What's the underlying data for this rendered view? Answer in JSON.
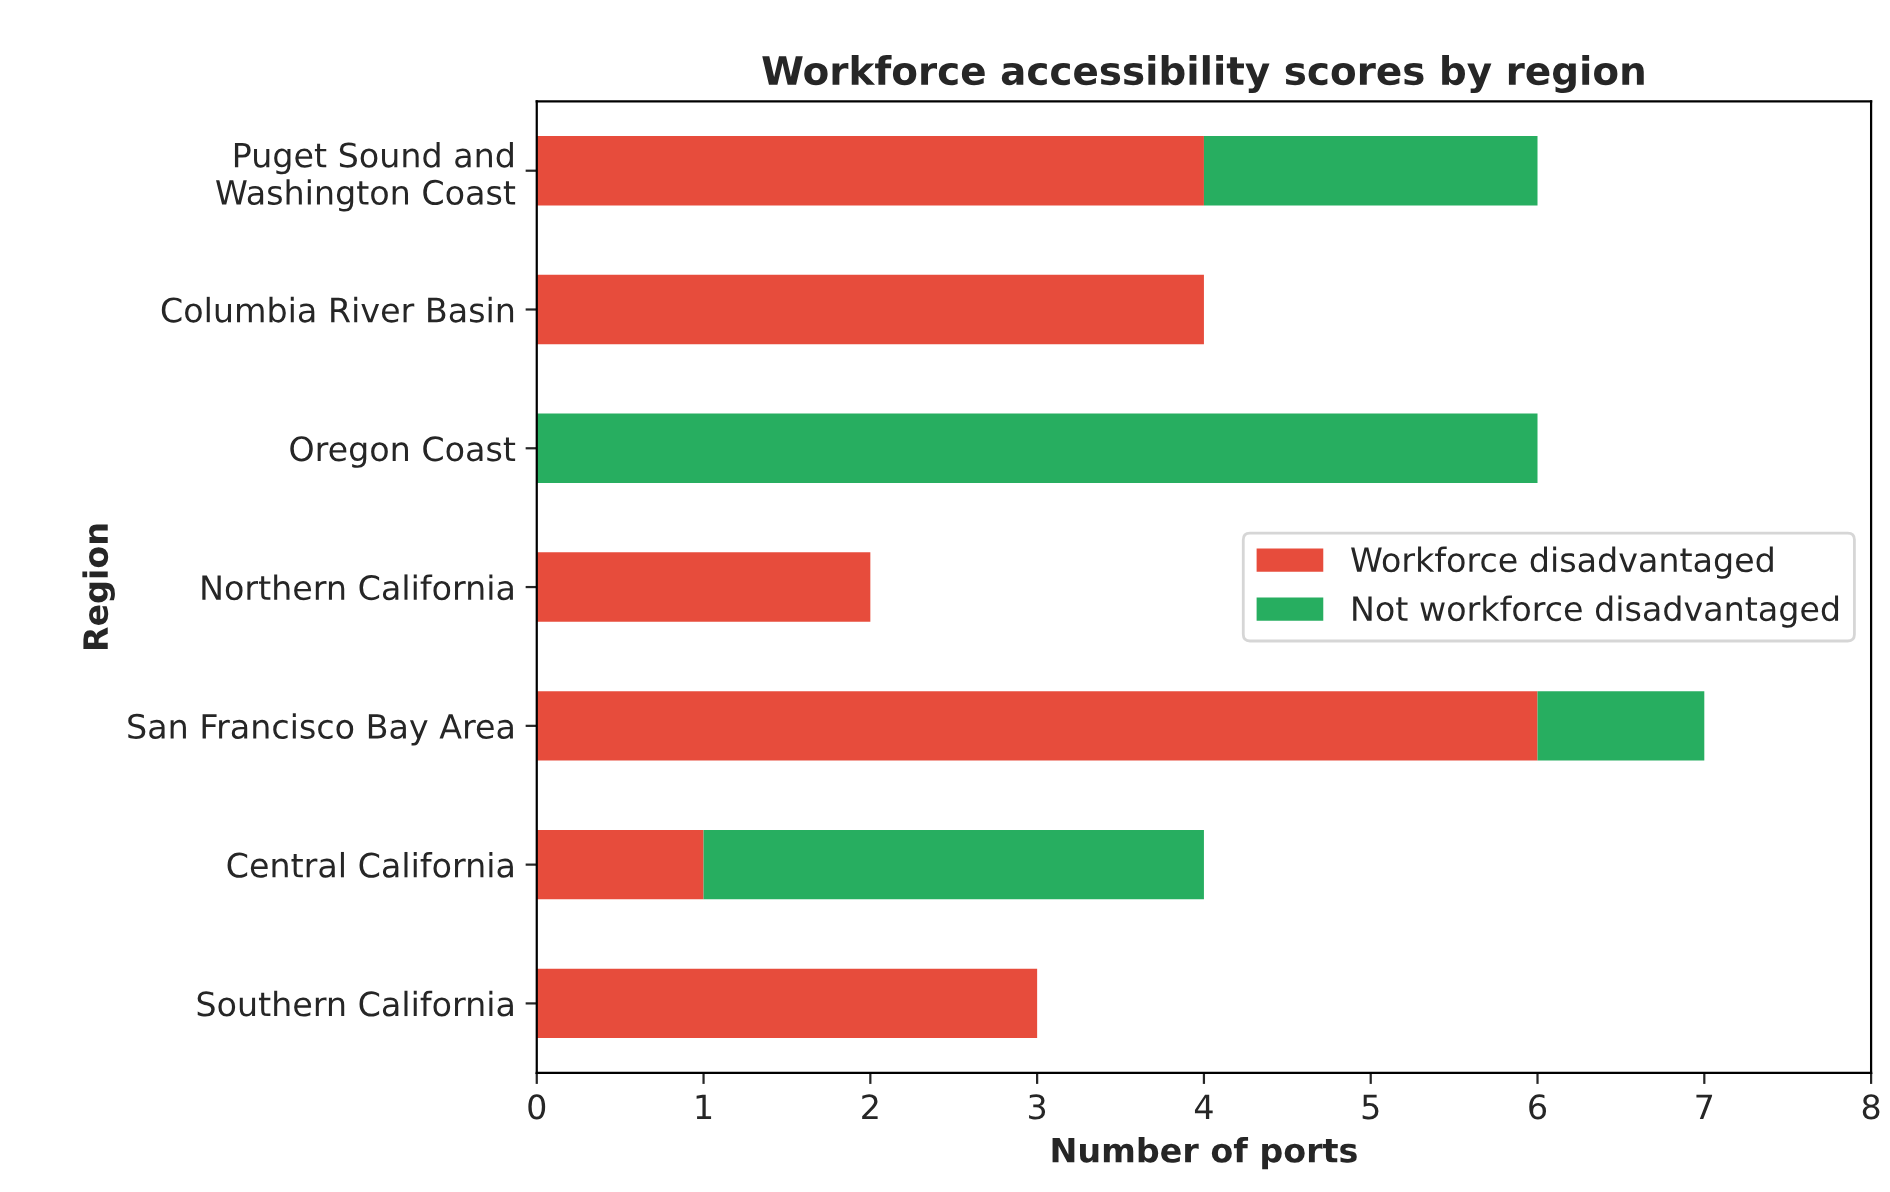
{
  "chart_data": {
    "type": "bar",
    "orientation": "horizontal",
    "stacked": true,
    "title": "Workforce accessibility scores by region",
    "xlabel": "Number of ports",
    "ylabel": "Region",
    "categories": [
      "Puget Sound and\nWashington Coast",
      "Columbia River Basin",
      "Oregon Coast",
      "Northern California",
      "San Francisco Bay Area",
      "Central California",
      "Southern California"
    ],
    "series": [
      {
        "name": "Workforce disadvantaged",
        "color": "#e74c3c",
        "values": [
          4,
          4,
          0,
          2,
          6,
          1,
          3
        ]
      },
      {
        "name": "Not workforce disadvantaged",
        "color": "#27ae60",
        "values": [
          2,
          0,
          6,
          0,
          1,
          3,
          0
        ]
      }
    ],
    "xlim": [
      0,
      8
    ],
    "xticks": [
      0,
      1,
      2,
      3,
      4,
      5,
      6,
      7,
      8
    ],
    "grid": false,
    "legend": "right"
  }
}
